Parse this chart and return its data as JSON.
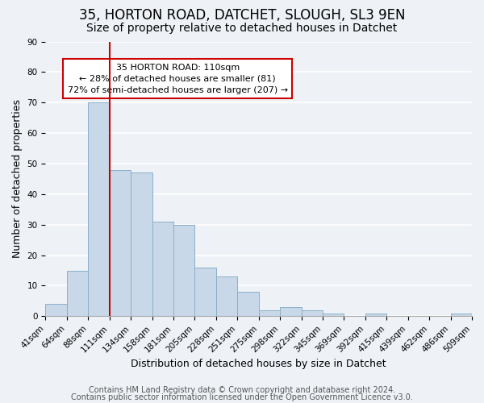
{
  "title": "35, HORTON ROAD, DATCHET, SLOUGH, SL3 9EN",
  "subtitle": "Size of property relative to detached houses in Datchet",
  "xlabel": "Distribution of detached houses by size in Datchet",
  "ylabel": "Number of detached properties",
  "bin_labels": [
    "41sqm",
    "64sqm",
    "88sqm",
    "111sqm",
    "134sqm",
    "158sqm",
    "181sqm",
    "205sqm",
    "228sqm",
    "251sqm",
    "275sqm",
    "298sqm",
    "322sqm",
    "345sqm",
    "369sqm",
    "392sqm",
    "415sqm",
    "439sqm",
    "462sqm",
    "486sqm",
    "509sqm"
  ],
  "bar_heights": [
    4,
    15,
    70,
    48,
    47,
    31,
    30,
    16,
    13,
    8,
    2,
    3,
    2,
    1,
    0,
    1,
    0,
    0,
    0,
    1
  ],
  "bar_color": "#c8d8e8",
  "bar_edge_color": "#8ab0c8",
  "ylim": [
    0,
    90
  ],
  "yticks": [
    0,
    10,
    20,
    30,
    40,
    50,
    60,
    70,
    80,
    90
  ],
  "property_line_color": "#cc0000",
  "annotation_title": "35 HORTON ROAD: 110sqm",
  "annotation_line1": "← 28% of detached houses are smaller (81)",
  "annotation_line2": "72% of semi-detached houses are larger (207) →",
  "annotation_box_facecolor": "#ffffff",
  "annotation_box_edgecolor": "#cc0000",
  "footer1": "Contains HM Land Registry data © Crown copyright and database right 2024.",
  "footer2": "Contains public sector information licensed under the Open Government Licence v3.0.",
  "background_color": "#eef2f7",
  "grid_color": "#ffffff",
  "title_fontsize": 12,
  "subtitle_fontsize": 10,
  "axis_label_fontsize": 9,
  "tick_fontsize": 7.5,
  "annotation_fontsize": 8,
  "footer_fontsize": 7
}
